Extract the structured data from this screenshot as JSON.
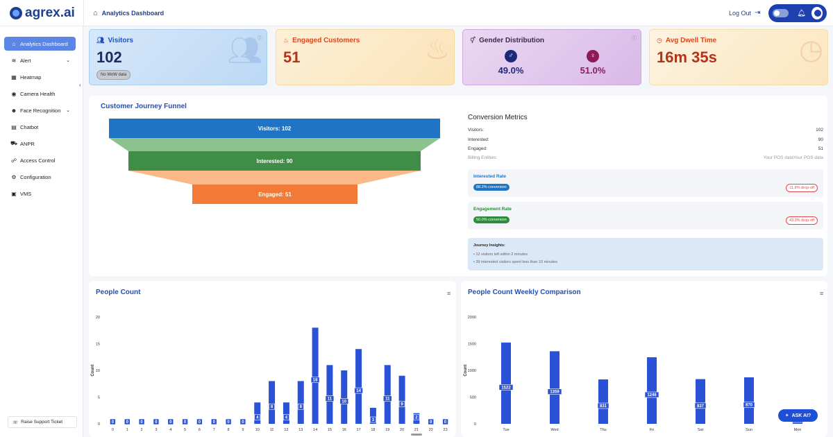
{
  "header": {
    "logo": "agrex.ai",
    "breadcrumb": "Analytics Dashboard",
    "logout": "Log Out"
  },
  "sidebar": {
    "items": [
      {
        "label": "Analytics Dashboard",
        "icon": "home-icon",
        "active": true
      },
      {
        "label": "Alert",
        "icon": "alert-icon",
        "chevron": true
      },
      {
        "label": "Heatmap",
        "icon": "heatmap-icon"
      },
      {
        "label": "Camera Health",
        "icon": "eye-icon"
      },
      {
        "label": "Face Recognition",
        "icon": "face-icon",
        "chevron": true
      },
      {
        "label": "Chatbot",
        "icon": "chat-icon"
      },
      {
        "label": "ANPR",
        "icon": "truck-icon"
      },
      {
        "label": "Access Control",
        "icon": "users-icon"
      },
      {
        "label": "Configuration",
        "icon": "gear-icon"
      },
      {
        "label": "VMS",
        "icon": "vms-icon"
      }
    ],
    "support": "Raise Support Ticket"
  },
  "kpis": {
    "visitors": {
      "title": "Visitors",
      "value": "102",
      "badge": "No WoW data",
      "color": "#1e4fc2"
    },
    "engaged": {
      "title": "Engaged Customers",
      "value": "51",
      "color": "#d9481e"
    },
    "gender": {
      "title": "Gender Distribution",
      "male": "49.0%",
      "female": "51.0%",
      "male_color": "#1e2a78",
      "female_color": "#8e1a5a"
    },
    "dwell": {
      "title": "Avg Dwell Time",
      "value": "16m 35s",
      "color": "#d9481e"
    }
  },
  "funnel": {
    "title": "Customer Journey Funnel",
    "stages": [
      {
        "label": "Visitors: 102",
        "value": 102,
        "color": "#1f74c6"
      },
      {
        "label": "Interested: 90",
        "value": 90,
        "color": "#3f8d46"
      },
      {
        "label": "Engaged: 51",
        "value": 51,
        "color": "#f07a36"
      }
    ]
  },
  "conversion": {
    "title": "Conversion Metrics",
    "rows": [
      {
        "label": "Visitors:",
        "value": "102"
      },
      {
        "label": "Interested:",
        "value": "90"
      },
      {
        "label": "Engaged:",
        "value": "51"
      },
      {
        "label": "Billing Entities:",
        "value": "Your POS dataYour POS data"
      }
    ],
    "interested_rate": {
      "title": "Interested Rate",
      "conversion": "88.2% conversion",
      "dropoff": "11.8% drop-off",
      "title_color": "#1f74c6"
    },
    "engagement_rate": {
      "title": "Engagement Rate",
      "conversion": "50.0% conversion",
      "dropoff": "43.3% drop-off",
      "title_color": "#2e8a3c"
    },
    "insights": {
      "title": "Journey Insights:",
      "items": [
        "• 12 visitors left within 2 minutes",
        "• 39 interested visitors spent less than 10 minutes"
      ]
    }
  },
  "chart_data": [
    {
      "type": "bar",
      "title": "People Count",
      "ylabel": "Count",
      "xlabel": "",
      "ylim": [
        0,
        20
      ],
      "yticks": [
        0,
        5,
        10,
        15,
        20
      ],
      "categories": [
        "0",
        "1",
        "2",
        "3",
        "4",
        "5",
        "6",
        "7",
        "8",
        "9",
        "10",
        "11",
        "12",
        "13",
        "14",
        "15",
        "16",
        "17",
        "18",
        "19",
        "20",
        "21",
        "22",
        "23"
      ],
      "values": [
        0,
        0,
        0,
        0,
        0,
        0,
        0,
        0,
        0,
        0,
        4,
        8,
        4,
        8,
        18,
        11,
        10,
        14,
        3,
        11,
        9,
        2,
        0,
        0
      ],
      "color": "#2a52d6"
    },
    {
      "type": "bar",
      "title": "People Count Weekly Comparison",
      "ylabel": "Count",
      "xlabel": "",
      "ylim": [
        0,
        2000
      ],
      "yticks": [
        0,
        500,
        1000,
        1500,
        2000
      ],
      "categories": [
        "Tue",
        "Wed",
        "Thu",
        "Fri",
        "Sat",
        "Sun",
        "Mon"
      ],
      "values": [
        1522,
        1359,
        831,
        1246,
        837,
        870,
        102
      ],
      "color": "#2a52d6"
    }
  ],
  "ask_ai": "ASK AI?"
}
